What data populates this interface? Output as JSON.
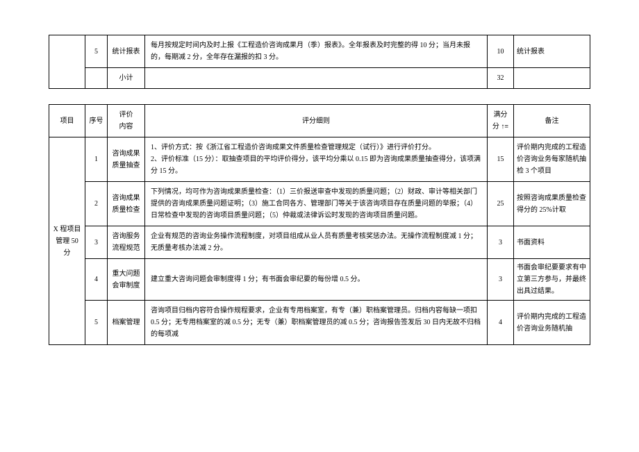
{
  "table1": {
    "rows": [
      {
        "num": "5",
        "eval": "统计报表",
        "rule": "每月按规定时间内及时上报《工程造价咨询成果月（季）报表》。全年报表及时完整的得 10 分；当月未报的，每期减 2 分，全年存在漏报的扣 3 分。",
        "score": "10",
        "note": "统计报表"
      },
      {
        "num": "",
        "eval": "小计",
        "rule": "",
        "score": "32",
        "note": ""
      }
    ]
  },
  "table2": {
    "header": {
      "proj": "项目",
      "num": "序号",
      "eval": "评价\n内容",
      "rule": "评分细则",
      "score": "满分\n分",
      "note": "备注"
    },
    "projLabel": "X 程项目\n管理 50\n分",
    "rows": [
      {
        "num": "1",
        "eval": "咨询成果质量抽查",
        "rule": "1、评价方式：按《浙江省工程造价咨询成果文件质量检查管理规定（试行）》进行评价打分。\n2、评价标准（15 分）：取抽查项目的平均评价得分，该平均分乘以 0.15 即为咨询成果质量抽查得分，该项满分 15 分。",
        "score": "15",
        "note": "评价期内完成的工程造价咨询业务每家随机抽检 3 个项目"
      },
      {
        "num": "2",
        "eval": "咨询成果质量检查",
        "rule": "下列情况，均可作为咨询成果质量检查：（1）三价报送审查中发现的质量问题；（2）财政、审计等相关部门提供的咨询成果质量问题证明；（3）施工合同各方、管理部门等关于该咨询项目存在质量问题的举报；（4）日常检查中发现的咨询项目质量问题；（5）仲裁或法律诉讼时发现的咨询项目质量问题。",
        "score": "25",
        "note": "按照咨询成果质量检查得分的 25%计取"
      },
      {
        "num": "3",
        "eval": "咨询服务流程规范",
        "rule": "企业有规范的咨询业务操作流程制度，对项目组成从业人员有质量考核奖惩办法。无操作流程制度减 1 分；无质量考核办法减 2 分。",
        "score": "3",
        "note": "书面资料"
      },
      {
        "num": "4",
        "eval": "重大问题会审制度",
        "rule": "建立重大咨询问题会审制度得 1 分；有书面会审纪要的每份增 0.5 分。",
        "score": "3",
        "note": "书面会审纪要要求有中立第三方参与，并最终出具过结果。"
      },
      {
        "num": "5",
        "eval": "档案管理",
        "rule": "咨询项目归档内容符合操作规程要求，企业有专用档案室，有专（兼）职档案管理员。归档内容每缺一项扣 0.5 分；无专用档案室的减 0.5 分；无专（兼）职档案管理员的减 0.5 分；咨询报告签发后 30 日内无故不归档的每项减",
        "score": "4",
        "note": "评价期内完成的工程造价咨询业务随机抽"
      }
    ]
  },
  "style": {
    "border_color": "#000000",
    "bg_color": "#ffffff",
    "text_color": "#000000",
    "font_size_pt": 10
  }
}
